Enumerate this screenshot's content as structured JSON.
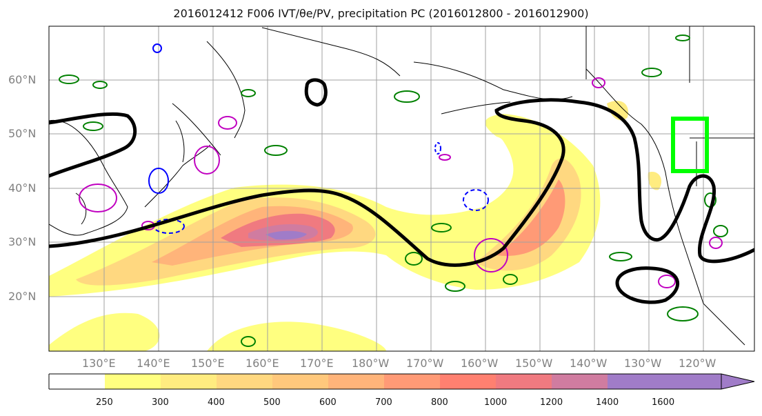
{
  "title": "2016012412 F006 IVT/θe/PV, precipitation PC (2016012800 - 2016012900)",
  "lat_labels": [
    "60°N",
    "50°N",
    "40°N",
    "30°N",
    "20°N"
  ],
  "lon_labels": [
    "130°E",
    "140°E",
    "150°E",
    "160°E",
    "170°E",
    "180°W",
    "170°W",
    "160°W",
    "150°W",
    "140°W",
    "130°W",
    "120°W"
  ],
  "colorbar": {
    "ticks": [
      "250",
      "300",
      "400",
      "500",
      "600",
      "700",
      "800",
      "1000",
      "1200",
      "1400",
      "1600"
    ],
    "colors": [
      "#ffffff",
      "#ffff80",
      "#ffec80",
      "#ffd880",
      "#ffc87c",
      "#ffb47a",
      "#ff9a76",
      "#ff8070",
      "#f07a80",
      "#d07ca0",
      "#a07cc8"
    ],
    "extend": "max"
  },
  "colors": {
    "theta_contour": "#000000",
    "green_contours": "#008000",
    "blue_contours": "#0000ff",
    "magenta_contours": "#c000c0",
    "highlight_box": "#00ff00",
    "coastline": "#000000"
  }
}
